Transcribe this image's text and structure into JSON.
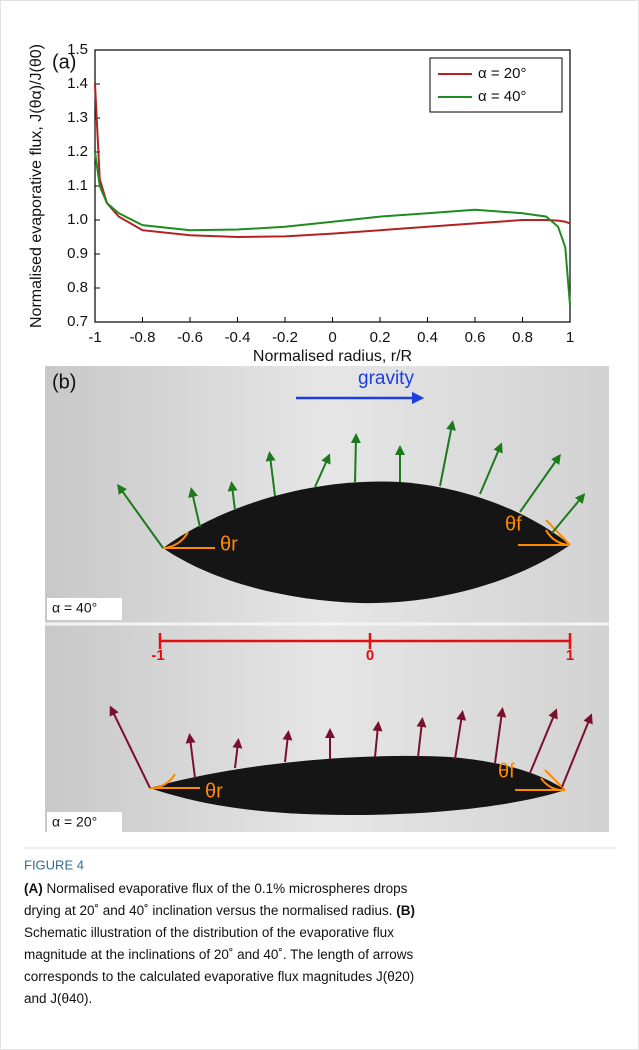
{
  "chart_data": {
    "type": "line",
    "panel_label": "(a)",
    "x_label": "Normalised radius, r/R",
    "y_label": "Normalised evaporative flux, J(θα)/J(θ0)",
    "x": [
      -1,
      -0.98,
      -0.95,
      -0.9,
      -0.8,
      -0.6,
      -0.4,
      -0.2,
      0,
      0.2,
      0.4,
      0.6,
      0.8,
      0.9,
      0.95,
      0.98,
      1
    ],
    "series": [
      {
        "name": "α = 20°",
        "color": "#b22222",
        "values": [
          1.4,
          1.12,
          1.05,
          1.01,
          0.97,
          0.955,
          0.95,
          0.952,
          0.96,
          0.97,
          0.98,
          0.99,
          1.0,
          1.0,
          0.998,
          0.995,
          0.99
        ]
      },
      {
        "name": "α = 40°",
        "color": "#1e8c1e",
        "values": [
          1.2,
          1.1,
          1.05,
          1.02,
          0.985,
          0.97,
          0.972,
          0.98,
          0.995,
          1.01,
          1.02,
          1.03,
          1.02,
          1.01,
          0.98,
          0.92,
          0.75
        ]
      }
    ],
    "xlim": [
      -1,
      1
    ],
    "xticks": [
      -1,
      -0.8,
      -0.6,
      -0.4,
      -0.2,
      0,
      0.2,
      0.4,
      0.6,
      0.8,
      1
    ],
    "ylim": [
      0.7,
      1.5
    ],
    "yticks": [
      0.7,
      0.8,
      0.9,
      {
        "value": 1,
        "label": "1.0"
      },
      1.1,
      1.2,
      1.3,
      1.4,
      1.5
    ],
    "legend": "upper right"
  },
  "panel_b": {
    "label": "(b)",
    "gravity": "gravity",
    "top": {
      "alpha": "α = 40°",
      "theta_r": "θr",
      "theta_f": "θf"
    },
    "scale": [
      "-1",
      "0",
      "1"
    ],
    "bottom": {
      "alpha": "α = 20°",
      "theta_r": "θr",
      "theta_f": "θf"
    }
  },
  "caption": {
    "label": "FIGURE 4",
    "lines": [
      [
        {
          "bold": "(A)"
        },
        " Normalised evaporative flux of the 0.1% microspheres drops"
      ],
      [
        "drying at 20˚ and 40˚ inclination versus the normalised radius. ",
        {
          "bold": "(B)"
        }
      ],
      [
        "Schematic illustration of the distribution of the evaporative flux"
      ],
      [
        "magnitude at the inclinations of 20˚ and 40˚. The length of arrows"
      ],
      [
        "corresponds to the calculated evaporative flux magnitudes J(θ20)"
      ],
      [
        "and J(θ40)."
      ]
    ]
  }
}
